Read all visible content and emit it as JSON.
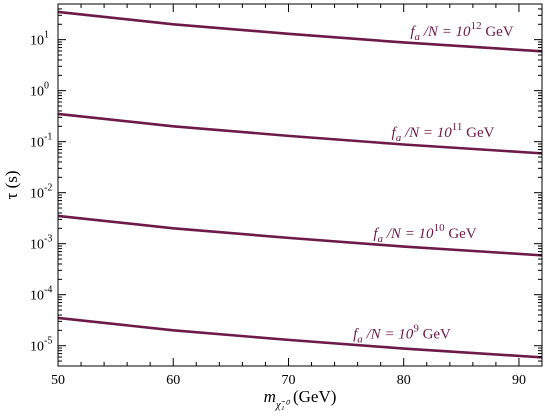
{
  "chart_data": {
    "type": "line",
    "title": "",
    "xlabel": {
      "symbol": "m",
      "subscript": "χ̃₁⁰",
      "unit": "(GeV)"
    },
    "ylabel": "τ (s)",
    "xlim": [
      50,
      92
    ],
    "ylim": [
      4e-06,
      50
    ],
    "yscale": "log",
    "grid": false,
    "line_color": "#6e1a48",
    "x_ticks": [
      50,
      60,
      70,
      80,
      90
    ],
    "y_ticks": [
      {
        "value": 1e-05,
        "mantissa": "10",
        "exponent": "-5"
      },
      {
        "value": 0.0001,
        "mantissa": "10",
        "exponent": "-4"
      },
      {
        "value": 0.001,
        "mantissa": "10",
        "exponent": "-3"
      },
      {
        "value": 0.01,
        "mantissa": "10",
        "exponent": "-2"
      },
      {
        "value": 0.1,
        "mantissa": "10",
        "exponent": "-1"
      },
      {
        "value": 1,
        "mantissa": "10",
        "exponent": "0"
      },
      {
        "value": 10,
        "mantissa": "10",
        "exponent": "1"
      }
    ],
    "series": [
      {
        "x": [
          50,
          60,
          70,
          80,
          92
        ],
        "y": [
          35,
          20,
          13,
          8.8,
          5.9
        ]
      },
      {
        "x": [
          50,
          60,
          70,
          80,
          92
        ],
        "y": [
          0.35,
          0.2,
          0.13,
          0.088,
          0.059
        ]
      },
      {
        "x": [
          50,
          60,
          70,
          80,
          92
        ],
        "y": [
          0.0035,
          0.002,
          0.0013,
          0.00088,
          0.00059
        ]
      },
      {
        "x": [
          50,
          60,
          70,
          80,
          92
        ],
        "y": [
          3.5e-05,
          2e-05,
          1.3e-05,
          8.8e-06,
          5.9e-06
        ]
      }
    ],
    "annotations": [
      {
        "text_a": "f",
        "sub_a": "a",
        "text_b": " /N = 10",
        "exponent": "12",
        "unit": " GeV"
      },
      {
        "text_a": "f",
        "sub_a": "a",
        "text_b": " /N = 10",
        "exponent": "11",
        "unit": " GeV"
      },
      {
        "text_a": "f",
        "sub_a": "a",
        "text_b": " /N = 10",
        "exponent": "10",
        "unit": " GeV"
      },
      {
        "text_a": "f",
        "sub_a": "a",
        "text_b": " /N = 10",
        "exponent": "9",
        "unit": " GeV"
      }
    ]
  }
}
